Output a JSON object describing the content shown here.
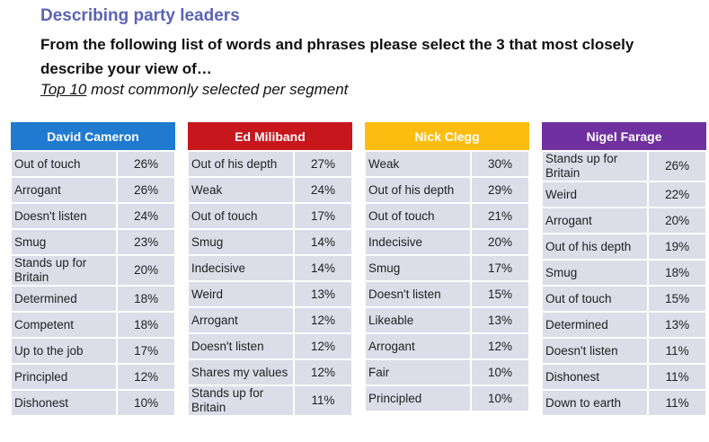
{
  "header": {
    "title": "Describing party leaders",
    "question": "From the following list of words and phrases please select the 3 that most closely describe your view of…",
    "subtitle_underlined": "Top 10",
    "subtitle_rest": " most commonly selected per segment"
  },
  "chart_data": {
    "type": "table",
    "segments": [
      {
        "name": "David Cameron",
        "color": "#1f7ad0",
        "rows": [
          {
            "label": "Out of touch",
            "value": "26%"
          },
          {
            "label": "Arrogant",
            "value": "26%"
          },
          {
            "label": "Doesn't listen",
            "value": "24%"
          },
          {
            "label": "Smug",
            "value": "23%"
          },
          {
            "label": "Stands up for Britain",
            "value": "20%"
          },
          {
            "label": "Determined",
            "value": "18%"
          },
          {
            "label": "Competent",
            "value": "18%"
          },
          {
            "label": "Up to the job",
            "value": "17%"
          },
          {
            "label": "Principled",
            "value": "12%"
          },
          {
            "label": "Dishonest",
            "value": "10%"
          }
        ]
      },
      {
        "name": "Ed Miliband",
        "color": "#c8161d",
        "rows": [
          {
            "label": "Out of his depth",
            "value": "27%"
          },
          {
            "label": "Weak",
            "value": "24%"
          },
          {
            "label": "Out of touch",
            "value": "17%"
          },
          {
            "label": "Smug",
            "value": "14%"
          },
          {
            "label": "Indecisive",
            "value": "14%"
          },
          {
            "label": "Weird",
            "value": "13%"
          },
          {
            "label": "Arrogant",
            "value": "12%"
          },
          {
            "label": "Doesn't listen",
            "value": "12%"
          },
          {
            "label": "Shares my values",
            "value": "12%"
          },
          {
            "label": "Stands up for Britain",
            "value": "11%"
          }
        ]
      },
      {
        "name": "Nick Clegg",
        "color": "#fdbd10",
        "rows": [
          {
            "label": "Weak",
            "value": "30%"
          },
          {
            "label": "Out of his depth",
            "value": "29%"
          },
          {
            "label": "Out of touch",
            "value": "21%"
          },
          {
            "label": "Indecisive",
            "value": "20%"
          },
          {
            "label": "Smug",
            "value": "17%"
          },
          {
            "label": "Doesn't listen",
            "value": "15%"
          },
          {
            "label": "Likeable",
            "value": "13%"
          },
          {
            "label": "Arrogant",
            "value": "12%"
          },
          {
            "label": "Fair",
            "value": "10%"
          },
          {
            "label": "Principled",
            "value": "10%"
          }
        ]
      },
      {
        "name": "Nigel Farage",
        "color": "#7030a0",
        "rows": [
          {
            "label": "Stands up for Britain",
            "value": "26%"
          },
          {
            "label": "Weird",
            "value": "22%"
          },
          {
            "label": "Arrogant",
            "value": "20%"
          },
          {
            "label": "Out of his depth",
            "value": "19%"
          },
          {
            "label": "Smug",
            "value": "18%"
          },
          {
            "label": "Out of touch",
            "value": "15%"
          },
          {
            "label": "Determined",
            "value": "13%"
          },
          {
            "label": "Doesn't listen",
            "value": "11%"
          },
          {
            "label": "Dishonest",
            "value": "11%"
          },
          {
            "label": "Down to earth",
            "value": "11%"
          }
        ]
      }
    ]
  }
}
